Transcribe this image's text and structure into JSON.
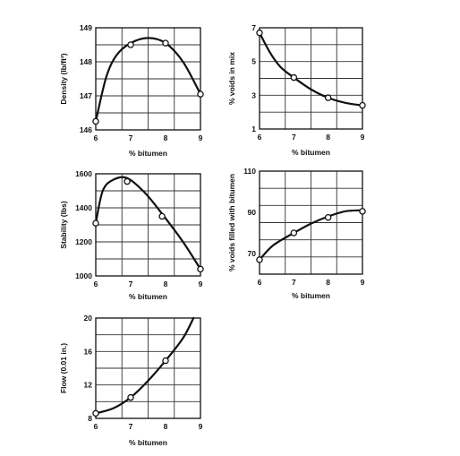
{
  "chart_data": [
    {
      "id": "density",
      "type": "line",
      "xlabel": "% bitumen",
      "ylabel": "Density (lb/ft³)",
      "xlim": [
        6,
        9
      ],
      "ylim": [
        146,
        149
      ],
      "xticks": [
        6,
        7,
        8,
        9
      ],
      "yticks": [
        146,
        147,
        148,
        149
      ],
      "ytick_labels": [
        "146",
        "147",
        "148",
        "149"
      ],
      "grid": true,
      "points": [
        [
          6,
          146.25
        ],
        [
          7,
          148.5
        ],
        [
          8,
          148.55
        ],
        [
          9,
          147.05
        ]
      ],
      "curve": [
        [
          6,
          146.25
        ],
        [
          6.3,
          147.55
        ],
        [
          6.6,
          148.2
        ],
        [
          7,
          148.55
        ],
        [
          7.5,
          148.7
        ],
        [
          8,
          148.55
        ],
        [
          8.5,
          148.0
        ],
        [
          9,
          147.05
        ]
      ]
    },
    {
      "id": "voids",
      "type": "line",
      "xlabel": "% bitumen",
      "ylabel": "% voids in mix",
      "xlim": [
        6,
        9
      ],
      "ylim": [
        1,
        7
      ],
      "xticks": [
        6,
        7,
        8,
        9
      ],
      "yticks": [
        1,
        3,
        5,
        7
      ],
      "ytick_labels": [
        "1",
        "3",
        "5",
        "7"
      ],
      "grid": true,
      "points": [
        [
          6,
          6.7
        ],
        [
          7,
          4.05
        ],
        [
          8,
          2.85
        ],
        [
          9,
          2.4
        ]
      ],
      "curve": [
        [
          6,
          6.7
        ],
        [
          6.3,
          5.55
        ],
        [
          6.6,
          4.7
        ],
        [
          7,
          4.05
        ],
        [
          7.5,
          3.35
        ],
        [
          8,
          2.85
        ],
        [
          8.5,
          2.55
        ],
        [
          9,
          2.4
        ]
      ]
    },
    {
      "id": "stability",
      "type": "line",
      "xlabel": "% bitumen",
      "ylabel": "Stability (lbs)",
      "xlim": [
        6,
        9
      ],
      "ylim": [
        1000,
        1600
      ],
      "xticks": [
        6,
        7,
        8,
        9
      ],
      "yticks": [
        1000,
        1200,
        1400,
        1600
      ],
      "ytick_labels": [
        "1000",
        "1200",
        "1400",
        "1600"
      ],
      "grid": true,
      "points": [
        [
          6,
          1310
        ],
        [
          6.9,
          1555
        ],
        [
          7.9,
          1350
        ],
        [
          9,
          1040
        ]
      ],
      "curve": [
        [
          6,
          1310
        ],
        [
          6.2,
          1500
        ],
        [
          6.5,
          1565
        ],
        [
          6.9,
          1575
        ],
        [
          7.4,
          1490
        ],
        [
          7.9,
          1365
        ],
        [
          8.5,
          1200
        ],
        [
          9,
          1040
        ]
      ]
    },
    {
      "id": "vfb",
      "type": "line",
      "xlabel": "% bitumen",
      "ylabel": "% voids filled with bitumen",
      "xlim": [
        6,
        9
      ],
      "ylim": [
        60,
        110
      ],
      "xticks": [
        6,
        7,
        8,
        9
      ],
      "yticks": [
        70,
        90,
        110
      ],
      "ytick_labels": [
        "70",
        "90",
        "110"
      ],
      "grid": true,
      "points": [
        [
          6,
          67
        ],
        [
          7,
          80
        ],
        [
          8,
          87.5
        ],
        [
          9,
          90.5
        ]
      ],
      "curve": [
        [
          6,
          67
        ],
        [
          6.4,
          74
        ],
        [
          7,
          80
        ],
        [
          7.5,
          84.5
        ],
        [
          8,
          88
        ],
        [
          8.5,
          90.5
        ],
        [
          9,
          91
        ]
      ]
    },
    {
      "id": "flow",
      "type": "line",
      "xlabel": "% bitumen",
      "ylabel": "Flow (0.01 in.)",
      "xlim": [
        6,
        9
      ],
      "ylim": [
        8,
        20
      ],
      "xticks": [
        6,
        7,
        8,
        9
      ],
      "yticks": [
        8,
        12,
        16,
        20
      ],
      "ytick_labels": [
        "8",
        "12",
        "16",
        "20"
      ],
      "grid": true,
      "points": [
        [
          6,
          8.6
        ],
        [
          7,
          10.5
        ],
        [
          8,
          14.9
        ]
      ],
      "curve": [
        [
          6,
          8.6
        ],
        [
          6.5,
          9.2
        ],
        [
          7,
          10.5
        ],
        [
          7.5,
          12.5
        ],
        [
          8,
          14.9
        ],
        [
          8.5,
          17.6
        ],
        [
          8.8,
          20
        ]
      ]
    }
  ]
}
